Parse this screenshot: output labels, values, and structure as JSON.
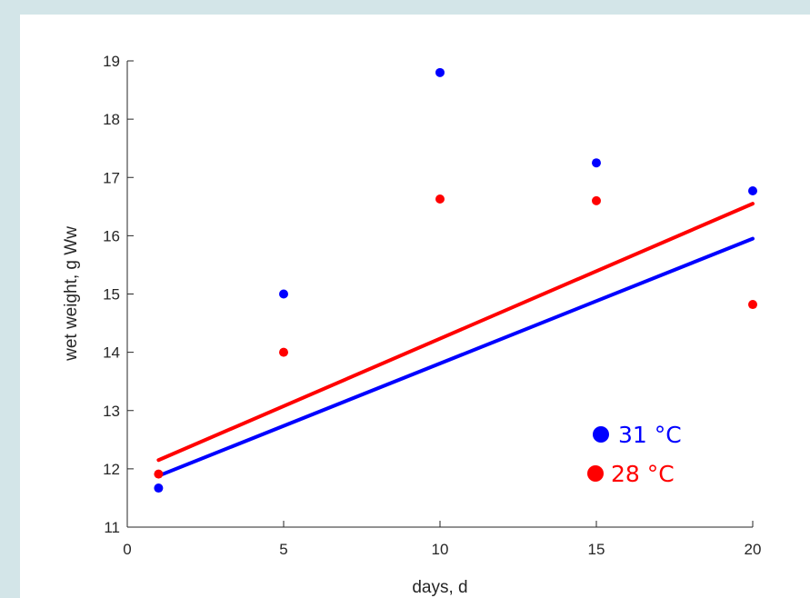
{
  "chart_data": {
    "type": "scatter",
    "title": "",
    "xlabel": "days, d",
    "ylabel": "wet weight, g Ww",
    "xlim": [
      0,
      20
    ],
    "ylim": [
      11,
      19
    ],
    "xticks": [
      0,
      5,
      10,
      15,
      20
    ],
    "yticks": [
      11,
      12,
      13,
      14,
      15,
      16,
      17,
      18,
      19
    ],
    "grid": false,
    "legend_position": "bottom-right",
    "series": [
      {
        "name": "31 °C",
        "color": "#0000ff",
        "points": {
          "x": [
            1,
            5,
            10,
            15,
            20
          ],
          "y": [
            11.67,
            15.0,
            18.8,
            17.25,
            16.77
          ]
        },
        "fit": {
          "x": [
            1,
            20
          ],
          "y": [
            11.88,
            15.95
          ]
        }
      },
      {
        "name": "28 °C",
        "color": "#ff0000",
        "points": {
          "x": [
            1,
            5,
            10,
            15,
            20
          ],
          "y": [
            11.91,
            14.0,
            16.63,
            16.6,
            14.82
          ]
        },
        "fit": {
          "x": [
            1,
            20
          ],
          "y": [
            12.15,
            16.55
          ]
        }
      }
    ]
  }
}
